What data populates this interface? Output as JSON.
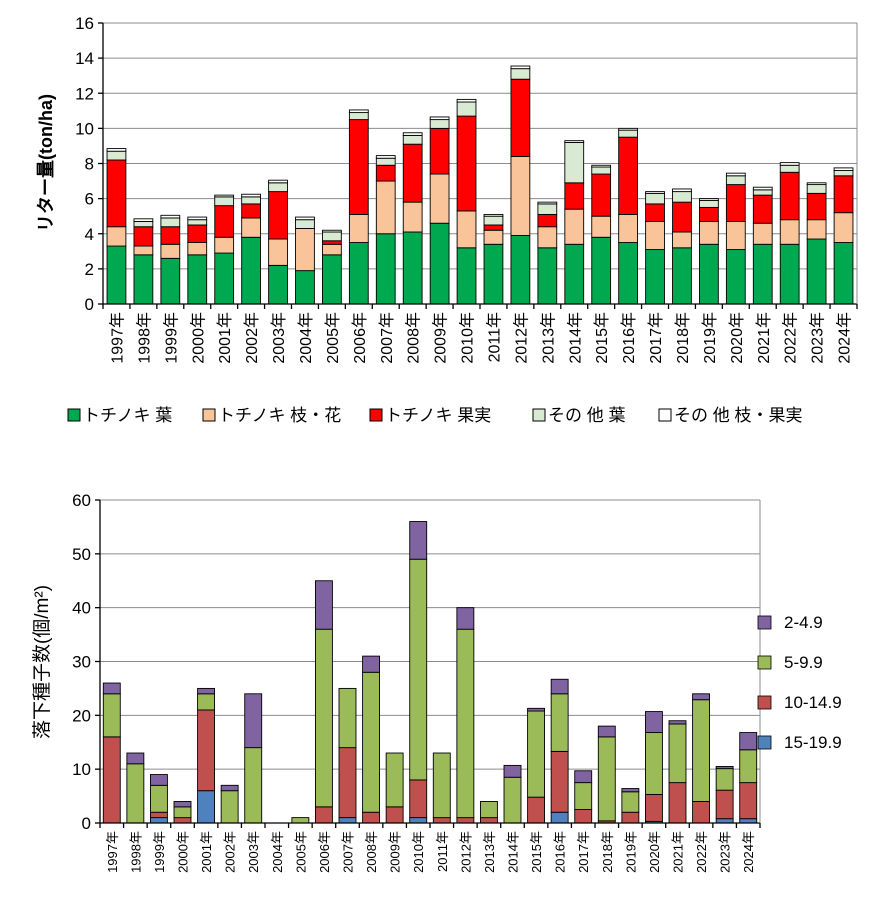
{
  "chart_data": [
    {
      "type": "bar",
      "stacked": true,
      "ylabel": "リター量(ton/ha)",
      "ylim": [
        0,
        16
      ],
      "yticks": [
        0,
        2,
        4,
        6,
        8,
        10,
        12,
        14,
        16
      ],
      "grid": true,
      "legend_position": "bottom",
      "categories": [
        "1997年",
        "1998年",
        "1999年",
        "2000年",
        "2001年",
        "2002年",
        "2003年",
        "2004年",
        "2005年",
        "2006年",
        "2007年",
        "2008年",
        "2009年",
        "2010年",
        "2011年",
        "2012年",
        "2013年",
        "2014年",
        "2015年",
        "2016年",
        "2017年",
        "2018年",
        "2019年",
        "2020年",
        "2021年",
        "2022年",
        "2023年",
        "2024年"
      ],
      "series": [
        {
          "name": "トチノキ 葉",
          "color": "#00a84f",
          "values": [
            3.3,
            2.8,
            2.6,
            2.8,
            2.9,
            3.8,
            2.2,
            1.9,
            2.8,
            3.5,
            4.0,
            4.1,
            4.6,
            3.2,
            3.4,
            3.9,
            3.2,
            3.4,
            3.8,
            3.5,
            3.1,
            3.2,
            3.4,
            3.1,
            3.4,
            3.4,
            3.7,
            3.5
          ]
        },
        {
          "name": "トチノキ 枝・花",
          "color": "#f9c49a",
          "values": [
            1.1,
            0.5,
            0.8,
            0.7,
            0.9,
            1.1,
            1.5,
            2.4,
            0.6,
            1.6,
            3.0,
            1.7,
            2.8,
            2.1,
            0.8,
            4.5,
            1.2,
            2.0,
            1.2,
            1.6,
            1.6,
            0.9,
            1.3,
            1.6,
            1.2,
            1.4,
            1.1,
            1.7
          ]
        },
        {
          "name": "トチノキ 果実",
          "color": "#ff0000",
          "values": [
            3.8,
            1.1,
            1.0,
            1.0,
            1.8,
            0.8,
            2.7,
            0.0,
            0.2,
            5.4,
            0.9,
            3.3,
            2.6,
            5.4,
            0.3,
            4.4,
            0.7,
            1.5,
            2.4,
            4.4,
            1.0,
            1.7,
            0.8,
            2.1,
            1.6,
            2.7,
            1.5,
            2.1
          ]
        },
        {
          "name": "その 他 葉",
          "color": "#d9ead3",
          "values": [
            0.5,
            0.3,
            0.5,
            0.3,
            0.5,
            0.4,
            0.5,
            0.5,
            0.5,
            0.4,
            0.4,
            0.5,
            0.5,
            0.8,
            0.5,
            0.6,
            0.6,
            2.3,
            0.4,
            0.4,
            0.6,
            0.6,
            0.4,
            0.5,
            0.3,
            0.4,
            0.5,
            0.3
          ]
        },
        {
          "name": "その 他 枝・果実",
          "color": "#ffffff",
          "values": [
            0.15,
            0.15,
            0.15,
            0.15,
            0.1,
            0.15,
            0.15,
            0.15,
            0.1,
            0.15,
            0.15,
            0.15,
            0.15,
            0.15,
            0.1,
            0.15,
            0.1,
            0.1,
            0.1,
            0.1,
            0.1,
            0.15,
            0.1,
            0.15,
            0.15,
            0.15,
            0.1,
            0.15
          ]
        }
      ]
    },
    {
      "type": "bar",
      "stacked": true,
      "ylabel": "落下種子数(個/m²)",
      "ylim": [
        0,
        60
      ],
      "yticks": [
        0,
        10,
        20,
        30,
        40,
        50,
        60
      ],
      "grid": true,
      "legend_position": "right",
      "categories": [
        "1997年",
        "1998年",
        "1999年",
        "2000年",
        "2001年",
        "2002年",
        "2003年",
        "2004年",
        "2005年",
        "2006年",
        "2007年",
        "2008年",
        "2009年",
        "2010年",
        "2011年",
        "2012年",
        "2013年",
        "2014年",
        "2015年",
        "2016年",
        "2017年",
        "2018年",
        "2019年",
        "2020年",
        "2021年",
        "2022年",
        "2023年",
        "2024年"
      ],
      "series": [
        {
          "name": "15-19.9",
          "color": "#4f81bd",
          "values": [
            0,
            0,
            1,
            0,
            6,
            0,
            0,
            0,
            0,
            0,
            1,
            0,
            0,
            1,
            0,
            0,
            0,
            0,
            0,
            2,
            0,
            0,
            0,
            0.3,
            0,
            0,
            0.8,
            0.8
          ]
        },
        {
          "name": "10-14.9",
          "color": "#c0504d",
          "values": [
            16,
            0,
            1,
            1,
            15,
            0,
            0,
            0,
            0,
            3,
            13,
            2,
            3,
            7,
            1,
            1,
            1,
            0,
            4.8,
            11.3,
            2.5,
            0.4,
            2,
            5,
            7.5,
            4,
            5.3,
            6.7
          ]
        },
        {
          "name": "5-9.9",
          "color": "#9bbb59",
          "values": [
            8,
            11,
            5,
            2,
            3,
            6,
            14,
            0,
            1,
            33,
            11,
            26,
            10,
            41,
            12,
            35,
            3,
            8.5,
            16,
            10.7,
            5,
            15.6,
            3.8,
            11.5,
            10.9,
            18.9,
            4,
            6.1
          ]
        },
        {
          "name": "2-4.9",
          "color": "#8064a2",
          "values": [
            2,
            2,
            2,
            1,
            1,
            1,
            10,
            0,
            0,
            9,
            0,
            3,
            0,
            7,
            0,
            4,
            0,
            2.2,
            0.5,
            2.7,
            2.2,
            2,
            0.6,
            3.9,
            0.6,
            1.1,
            0.4,
            3.2
          ]
        }
      ],
      "legend_order": [
        "2-4.9",
        "5-9.9",
        "10-14.9",
        "15-19.9"
      ]
    }
  ]
}
